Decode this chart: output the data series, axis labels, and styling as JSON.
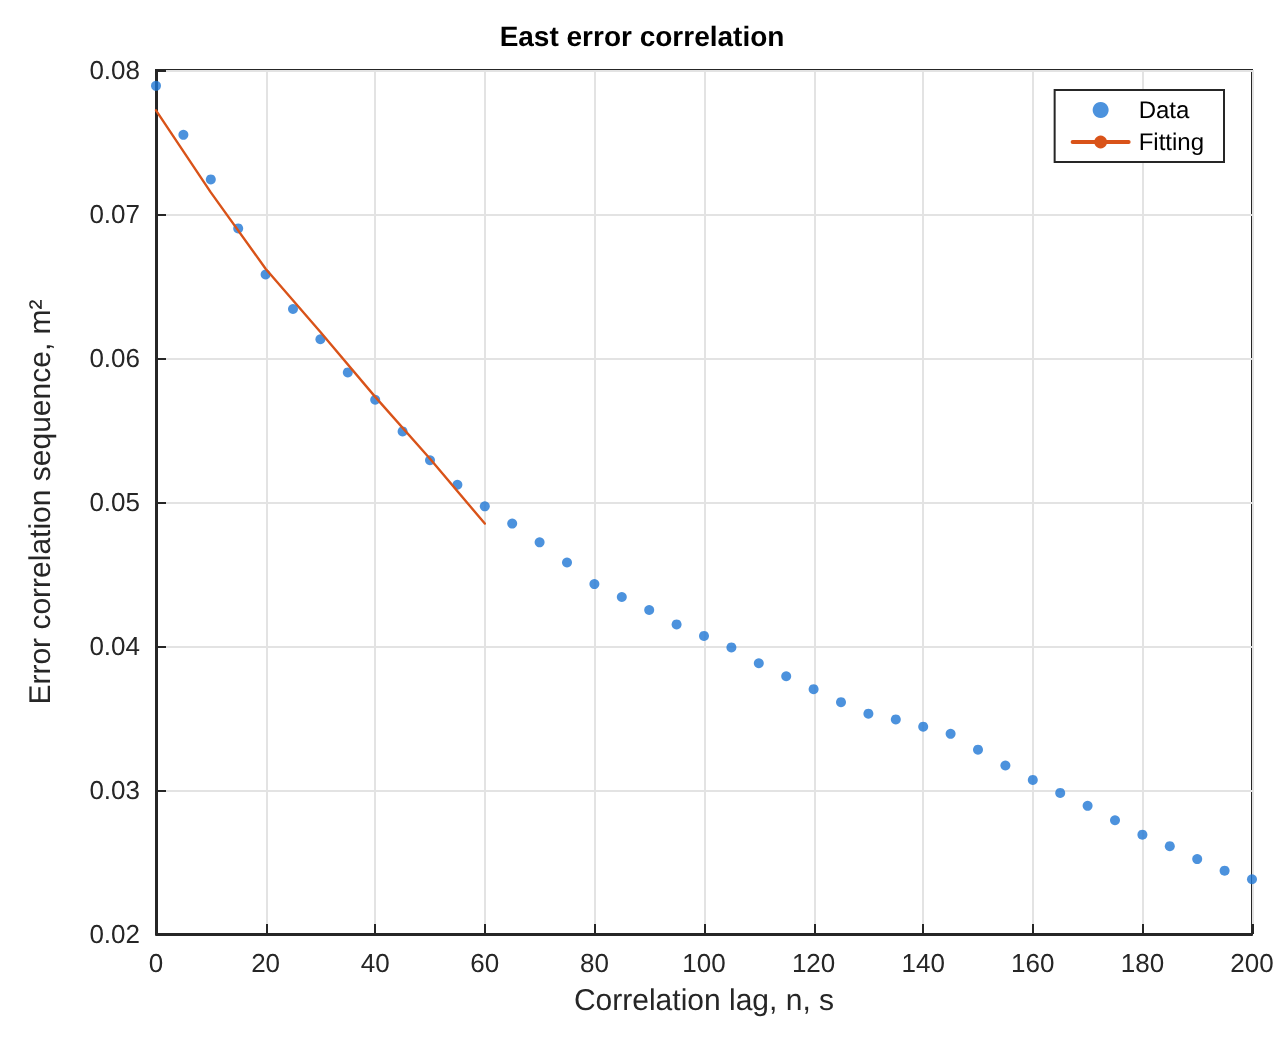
{
  "chart_data": {
    "type": "scatter",
    "title": "East error correlation",
    "xlabel": "Correlation lag, n, s",
    "ylabel": "Error correlation sequence, m²",
    "xlim": [
      0,
      200
    ],
    "xticks": [
      0,
      20,
      40,
      60,
      80,
      100,
      120,
      140,
      160,
      180,
      200
    ],
    "ylim": [
      0.02,
      0.08
    ],
    "yticks": [
      0.02,
      0.03,
      0.04,
      0.05,
      0.06,
      0.07,
      0.08
    ],
    "grid": true,
    "legend": "top right",
    "series": [
      {
        "name": "Data",
        "marker": "circle",
        "color": "#1f77d4",
        "x": [
          0,
          5,
          10,
          15,
          20,
          25,
          30,
          35,
          40,
          45,
          50,
          55,
          60,
          65,
          70,
          75,
          80,
          85,
          90,
          95,
          100,
          105,
          110,
          115,
          120,
          125,
          130,
          135,
          140,
          145,
          150,
          155,
          160,
          165,
          170,
          175,
          180,
          185,
          190,
          195,
          200
        ],
        "values": [
          0.0789,
          0.0755,
          0.0724,
          0.069,
          0.0658,
          0.0634,
          0.0613,
          0.059,
          0.0571,
          0.0549,
          0.0529,
          0.0512,
          0.0497,
          0.0485,
          0.0472,
          0.0458,
          0.0443,
          0.0434,
          0.0425,
          0.0415,
          0.0407,
          0.0399,
          0.0388,
          0.0379,
          0.037,
          0.0361,
          0.0353,
          0.0349,
          0.0344,
          0.0339,
          0.0328,
          0.0317,
          0.0307,
          0.0298,
          0.0289,
          0.0279,
          0.0269,
          0.0261,
          0.0252,
          0.0244,
          0.0238
        ]
      },
      {
        "name": "Fitting",
        "type": "line",
        "marker": "none",
        "line_style": "solid",
        "color": "#d95319",
        "x": [
          0,
          10,
          20,
          30,
          40,
          50,
          60
        ],
        "values": [
          0.0772,
          0.0715,
          0.0662,
          0.0618,
          0.0573,
          0.053,
          0.0485
        ]
      }
    ]
  }
}
